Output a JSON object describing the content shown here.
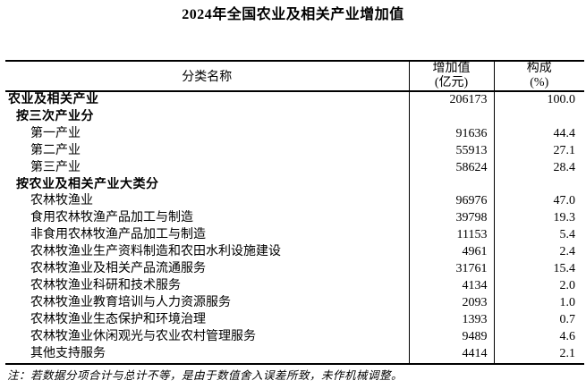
{
  "title": "2024年全国农业及相关产业增加值",
  "colors": {
    "text": "#000000",
    "background": "#ffffff",
    "border": "#000000"
  },
  "table": {
    "headers": {
      "category": "分类名称",
      "value_line1": "增加值",
      "value_line2": "(亿元)",
      "share_line1": "构成",
      "share_line2": "(%)"
    },
    "rows": [
      {
        "name": "农业及相关产业",
        "value": "206173",
        "share": "100.0"
      },
      {
        "name": "按三次产业分",
        "value": "",
        "share": ""
      },
      {
        "name": "第一产业",
        "value": "91636",
        "share": "44.4"
      },
      {
        "name": "第二产业",
        "value": "55913",
        "share": "27.1"
      },
      {
        "name": "第三产业",
        "value": "58624",
        "share": "28.4"
      },
      {
        "name": "按农业及相关产业大类分",
        "value": "",
        "share": ""
      },
      {
        "name": "农林牧渔业",
        "value": "96976",
        "share": "47.0"
      },
      {
        "name": "食用农林牧渔产品加工与制造",
        "value": "39798",
        "share": "19.3"
      },
      {
        "name": "非食用农林牧渔产品加工与制造",
        "value": "11153",
        "share": "5.4"
      },
      {
        "name": "农林牧渔业生产资料制造和农田水利设施建设",
        "value": "4961",
        "share": "2.4"
      },
      {
        "name": "农林牧渔业及相关产品流通服务",
        "value": "31761",
        "share": "15.4"
      },
      {
        "name": "农林牧渔业科研和技术服务",
        "value": "4134",
        "share": "2.0"
      },
      {
        "name": "农林牧渔业教育培训与人力资源服务",
        "value": "2093",
        "share": "1.0"
      },
      {
        "name": "农林牧渔业生态保护和环境治理",
        "value": "1393",
        "share": "0.7"
      },
      {
        "name": "农林牧渔业休闲观光与农业农村管理服务",
        "value": "9489",
        "share": "4.6"
      },
      {
        "name": "其他支持服务",
        "value": "4414",
        "share": "2.1"
      }
    ]
  },
  "note": "注：若数据分项合计与总计不等，是由于数值舍入误差所致，未作机械调整。"
}
